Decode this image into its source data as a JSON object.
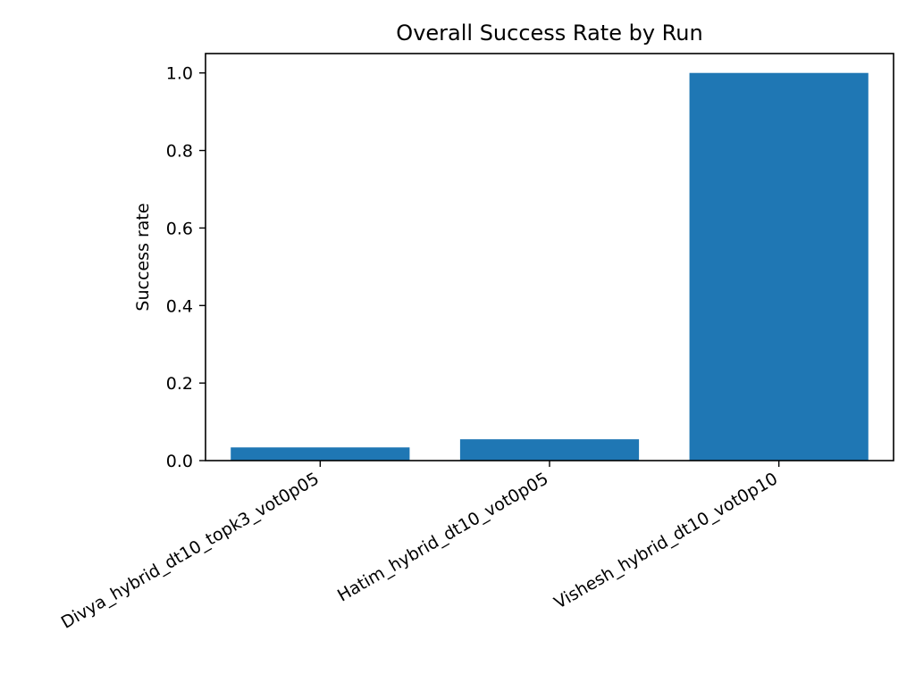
{
  "chart_data": {
    "type": "bar",
    "title": "Overall Success Rate by Run",
    "xlabel": "",
    "ylabel": "Success rate",
    "categories": [
      "Divya_hybrid_dt10_topk3_vot0p05",
      "Hatim_hybrid_dt10_vot0p05",
      "Vishesh_hybrid_dt10_vot0p10"
    ],
    "values": [
      0.034,
      0.055,
      1.0
    ],
    "ylim": [
      0,
      1.05
    ],
    "yticks": [
      0.0,
      0.2,
      0.4,
      0.6,
      0.8,
      1.0
    ],
    "ytick_labels": [
      "0.0",
      "0.2",
      "0.4",
      "0.6",
      "0.8",
      "1.0"
    ],
    "bar_color": "#1f77b4",
    "grid": false,
    "legend": "none"
  }
}
